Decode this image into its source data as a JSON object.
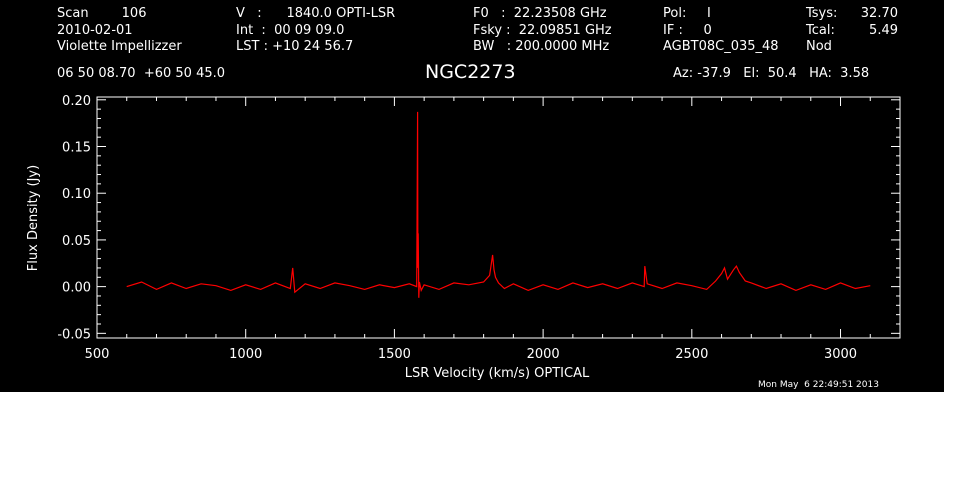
{
  "header": {
    "col1": [
      "Scan        106",
      "2010-02-01",
      "Violette Impellizzer"
    ],
    "col2": [
      "V   :      1840.0 OPTI-LSR",
      "Int  :  00 09 09.0",
      "LST : +10 24 56.7"
    ],
    "col3": [
      "F0   :  22.23508 GHz",
      "Fsky :  22.09851 GHz",
      "BW   : 200.0000 MHz"
    ],
    "col4": [
      "Pol:     I",
      "IF :     0",
      "AGBT08C_035_48"
    ],
    "col5": [
      "Tsys:",
      "Tcal:",
      "Nod"
    ],
    "col5_values": [
      "32.70",
      "5.49",
      ""
    ],
    "coords": "06 50 08.70  +60 50 45.0",
    "object": "NGC2273",
    "azelha": "Az: -37.9   El:  50.4   HA:  3.58",
    "timestamp": "Mon May  6 22:49:51 2013"
  },
  "chart_data": {
    "type": "line",
    "title": "NGC2273",
    "xlabel": "LSR Velocity (km/s) OPTICAL",
    "ylabel": "Flux Density (Jy)",
    "xlim": [
      500,
      3200
    ],
    "ylim": [
      -0.055,
      0.203
    ],
    "xticks": [
      500,
      1000,
      1500,
      2000,
      2500,
      3000
    ],
    "yticks": [
      -0.05,
      0.0,
      0.05,
      0.1,
      0.15,
      0.2
    ],
    "ytick_labels": [
      "-0.05",
      "0.00",
      "0.05",
      "0.10",
      "0.15",
      "0.20"
    ],
    "line_color": "#ff0000",
    "series": [
      {
        "x": [
          600,
          650,
          700,
          750,
          800,
          850,
          900,
          950,
          1000,
          1050,
          1100,
          1150,
          1158,
          1165,
          1200,
          1250,
          1300,
          1350,
          1400,
          1450,
          1500,
          1550,
          1575,
          1578,
          1579,
          1580,
          1582,
          1584,
          1590,
          1600,
          1650,
          1700,
          1750,
          1800,
          1820,
          1830,
          1835,
          1840,
          1850,
          1870,
          1900,
          1950,
          2000,
          2050,
          2100,
          2150,
          2200,
          2250,
          2300,
          2340,
          2342,
          2350,
          2400,
          2450,
          2500,
          2550,
          2580,
          2600,
          2610,
          2620,
          2640,
          2650,
          2660,
          2680,
          2700,
          2750,
          2800,
          2850,
          2900,
          2950,
          3000,
          3050,
          3100
        ],
        "values": [
          0.0,
          0.005,
          -0.003,
          0.004,
          -0.002,
          0.003,
          0.001,
          -0.004,
          0.002,
          -0.003,
          0.004,
          -0.002,
          0.02,
          -0.006,
          0.003,
          -0.002,
          0.004,
          0.001,
          -0.003,
          0.002,
          -0.001,
          0.003,
          0.0,
          0.187,
          0.02,
          0.057,
          -0.012,
          0.005,
          -0.004,
          0.002,
          -0.003,
          0.004,
          0.002,
          0.005,
          0.012,
          0.034,
          0.018,
          0.01,
          0.004,
          -0.002,
          0.003,
          -0.004,
          0.002,
          -0.003,
          0.004,
          -0.001,
          0.003,
          -0.002,
          0.004,
          0.0,
          0.022,
          0.003,
          -0.002,
          0.004,
          0.001,
          -0.003,
          0.006,
          0.014,
          0.02,
          0.008,
          0.018,
          0.022,
          0.015,
          0.006,
          0.004,
          -0.002,
          0.003,
          -0.004,
          0.002,
          -0.003,
          0.004,
          -0.002,
          0.001
        ]
      }
    ]
  }
}
